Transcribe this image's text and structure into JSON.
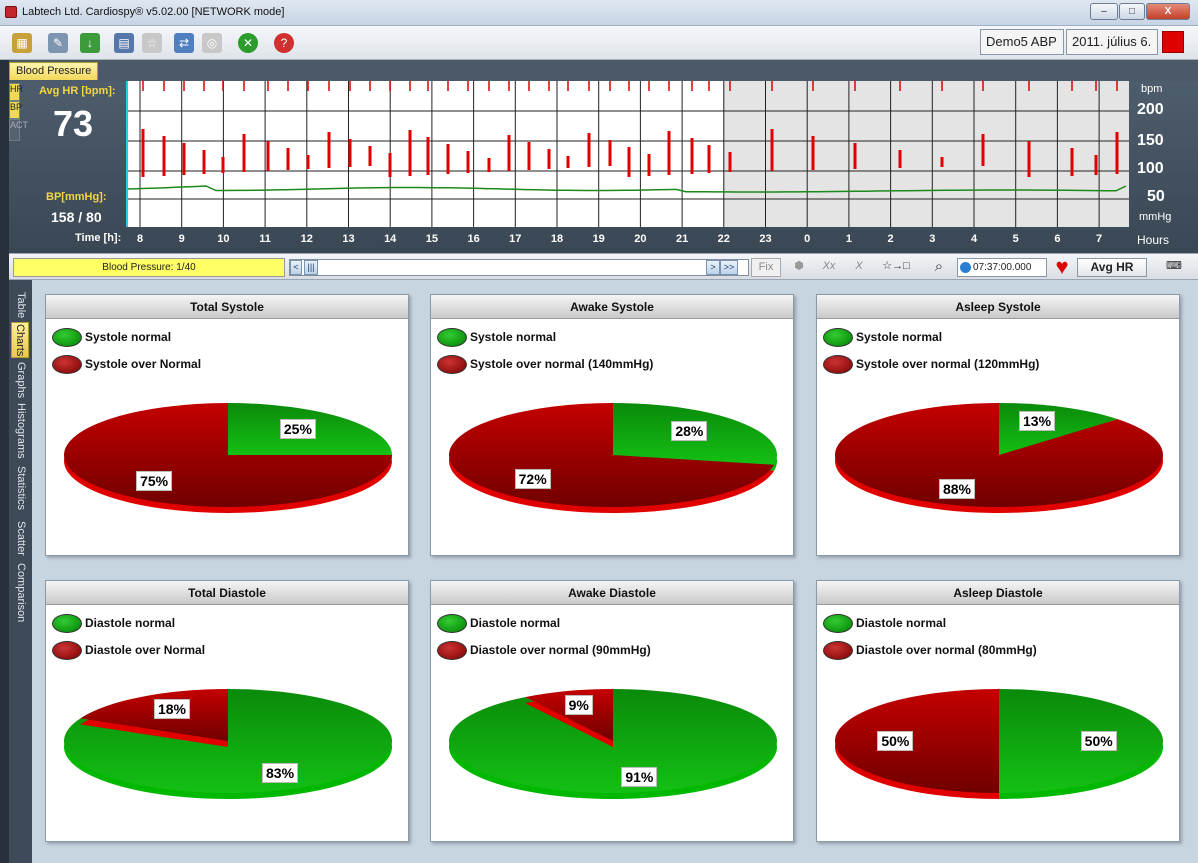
{
  "window": {
    "title": "Labtech Ltd. Cardiospy® v5.02.00 [NETWORK mode]",
    "minimize": "–",
    "maximize": "□",
    "close": "X"
  },
  "toolbar": {
    "patient": "Demo5 ABP",
    "date": "2011. július 6."
  },
  "tabs": {
    "blood_pressure": "Blood Pressure"
  },
  "chart_panel": {
    "vertical_tabs": [
      "HR",
      "BP",
      "ACT"
    ],
    "avg_hr_label": "Avg HR [bpm]:",
    "avg_hr_value": "73",
    "bp_label": "BP[mmHg]:",
    "bp_value": "158 / 80",
    "time_label": "Time [h]:",
    "bpm_unit": "bpm",
    "mmhg_unit": "mmHg",
    "hours_label": "Hours",
    "y_ticks": [
      "200",
      "150",
      "100",
      "50"
    ],
    "hour_ticks": [
      "8",
      "9",
      "10",
      "11",
      "12",
      "13",
      "14",
      "15",
      "16",
      "17",
      "18",
      "19",
      "20",
      "21",
      "22",
      "23",
      "0",
      "1",
      "2",
      "3",
      "4",
      "5",
      "6",
      "7"
    ],
    "bar_color": "#e00000",
    "line_color": "#1a8a1a"
  },
  "navbar": {
    "bp_count": "Blood Pressure: 1/40",
    "fix": "Fix",
    "time": "07:37:00.000",
    "avg_hr_button": "Avg HR"
  },
  "side_tabs": [
    "Table",
    "Charts",
    "Graphs",
    "Histograms",
    "Statistics",
    "Scatter",
    "Comparison"
  ],
  "cards": [
    {
      "title": "Total Systole",
      "legend_normal": "Systole normal",
      "legend_over": "Systole over Normal",
      "normal_pct": 25,
      "over_pct": 75,
      "normal_label": "25%",
      "over_label": "75%"
    },
    {
      "title": "Awake Systole",
      "legend_normal": "Systole normal",
      "legend_over": "Systole over normal (140mmHg)",
      "normal_pct": 28,
      "over_pct": 72,
      "normal_label": "28%",
      "over_label": "72%"
    },
    {
      "title": "Asleep Systole",
      "legend_normal": "Systole normal",
      "legend_over": "Systole over normal (120mmHg)",
      "normal_pct": 13,
      "over_pct": 88,
      "normal_label": "13%",
      "over_label": "88%"
    },
    {
      "title": "Total Diastole",
      "legend_normal": "Diastole normal",
      "legend_over": "Diastole over Normal",
      "normal_pct": 83,
      "over_pct": 18,
      "normal_label": "83%",
      "over_label": "18%"
    },
    {
      "title": "Awake Diastole",
      "legend_normal": "Diastole normal",
      "legend_over": "Diastole over normal (90mmHg)",
      "normal_pct": 91,
      "over_pct": 9,
      "normal_label": "91%",
      "over_label": "9%"
    },
    {
      "title": "Asleep Diastole",
      "legend_normal": "Diastole normal",
      "legend_over": "Diastole over normal (80mmHg)",
      "normal_pct": 50,
      "over_pct": 50,
      "normal_label": "50%",
      "over_label": "50%"
    }
  ],
  "colors": {
    "normal": "#0a9a0a",
    "over": "#9a0000"
  }
}
